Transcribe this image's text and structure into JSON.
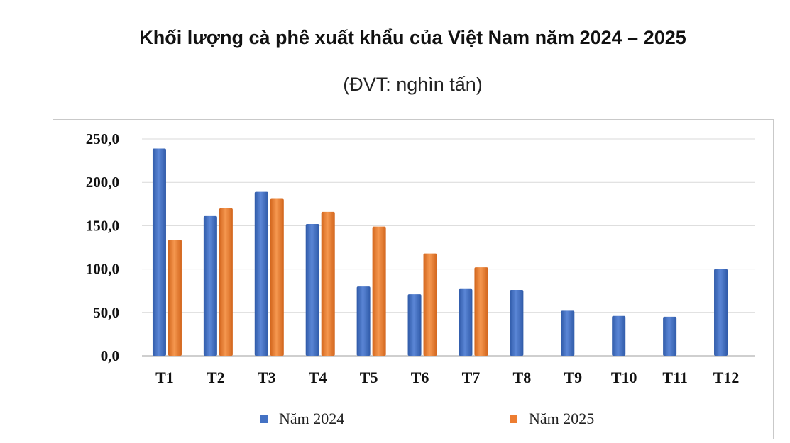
{
  "chart_data": {
    "type": "bar",
    "title": "Khối lượng cà phê xuất khẩu của Việt Nam năm 2024 – 2025",
    "subtitle": "(ĐVT: nghìn tấn)",
    "xlabel": "",
    "ylabel": "",
    "ylim": [
      0,
      250
    ],
    "y_ticks": [
      "0,0",
      "50,0",
      "100,0",
      "150,0",
      "200,0",
      "250,0"
    ],
    "y_tick_values": [
      0,
      50,
      100,
      150,
      200,
      250
    ],
    "grid": true,
    "legend_position": "bottom",
    "categories": [
      "T1",
      "T2",
      "T3",
      "T4",
      "T5",
      "T6",
      "T7",
      "T8",
      "T9",
      "T10",
      "T11",
      "T12"
    ],
    "series": [
      {
        "name": "Năm 2024",
        "color": "#4472c4",
        "values": [
          239,
          161,
          189,
          152,
          80,
          71,
          77,
          76,
          52,
          46,
          45,
          100
        ]
      },
      {
        "name": "Năm 2025",
        "color": "#ed7d31",
        "values": [
          134,
          170,
          181,
          166,
          149,
          118,
          102,
          null,
          null,
          null,
          null,
          null
        ]
      }
    ]
  }
}
